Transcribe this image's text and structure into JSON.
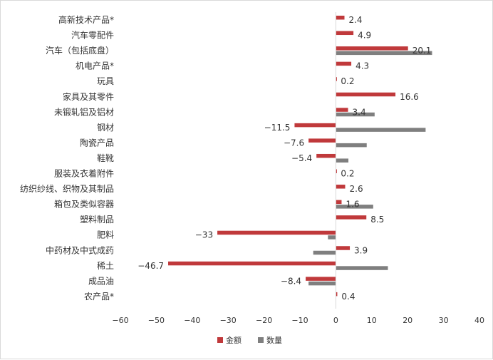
{
  "chart_data": {
    "type": "bar",
    "orientation": "horizontal",
    "categories": [
      "高新技术产品*",
      "汽车零配件",
      "汽车（包括底盘）",
      "机电产品*",
      "玩具",
      "家具及其零件",
      "未锻轧铝及铝材",
      "钢材",
      "陶瓷产品",
      "鞋靴",
      "服装及衣着附件",
      "纺织纱线、织物及其制品",
      "箱包及类似容器",
      "塑料制品",
      "肥料",
      "中药材及中式成药",
      "稀土",
      "成品油",
      "农产品*"
    ],
    "series": [
      {
        "name": "金额",
        "color": "#c0393b",
        "values": [
          2.4,
          4.9,
          20.1,
          4.3,
          0.2,
          16.6,
          3.4,
          -11.5,
          -7.6,
          -5.4,
          0.2,
          2.6,
          1.6,
          8.5,
          -33,
          3.9,
          -46.7,
          -8.4,
          0.4
        ]
      },
      {
        "name": "数量",
        "color": "#7f7f7f",
        "values": [
          null,
          null,
          26.8,
          null,
          null,
          null,
          10.8,
          25,
          8.6,
          3.5,
          null,
          null,
          10.4,
          null,
          -2.2,
          -6.3,
          14.5,
          -7.6,
          null
        ]
      }
    ],
    "data_labels": [
      "2.4",
      "4.9",
      "20.1",
      "4.3",
      "0.2",
      "16.6",
      "3.4",
      "−11.5",
      "−7.6",
      "−5.4",
      "0.2",
      "2.6",
      "1.6",
      "8.5",
      "−33",
      "3.9",
      "−46.7",
      "−8.4",
      "0.4"
    ],
    "xlim": [
      -60,
      40
    ],
    "xticks": [
      -60,
      -50,
      -40,
      -30,
      -20,
      -10,
      0,
      10,
      20,
      30,
      40
    ],
    "xtick_labels": [
      "−60",
      "−50",
      "−40",
      "−30",
      "−20",
      "−10",
      "0",
      "10",
      "20",
      "30",
      "40"
    ],
    "grid": false,
    "legend_position": "bottom"
  }
}
